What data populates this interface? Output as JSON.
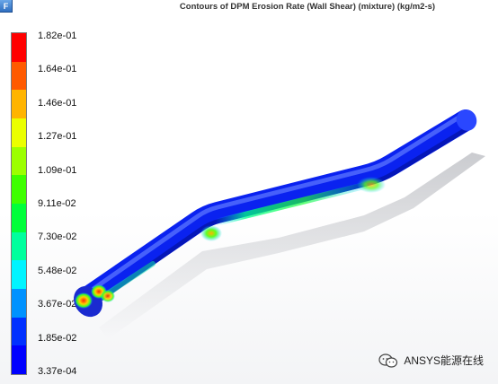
{
  "window": {
    "app_icon_letter": "F"
  },
  "plot": {
    "title": "Contours of DPM Erosion Rate (Wall Shear) (mixture)  (kg/m2-s)"
  },
  "colorbar": {
    "labels": [
      "1.82e-01",
      "1.64e-01",
      "1.46e-01",
      "1.27e-01",
      "1.09e-01",
      "9.11e-02",
      "7.30e-02",
      "5.48e-02",
      "3.67e-02",
      "1.85e-02",
      "3.37e-04"
    ],
    "colors": [
      "#ff0000",
      "#ff5a00",
      "#ffb400",
      "#ebff00",
      "#9cff00",
      "#3eff00",
      "#00ff3a",
      "#00ff9d",
      "#00f4ff",
      "#0092ff",
      "#0030ff",
      "#0000ff"
    ]
  },
  "watermark": {
    "icon": "wechat-icon",
    "text": "ANSYS能源在线"
  }
}
